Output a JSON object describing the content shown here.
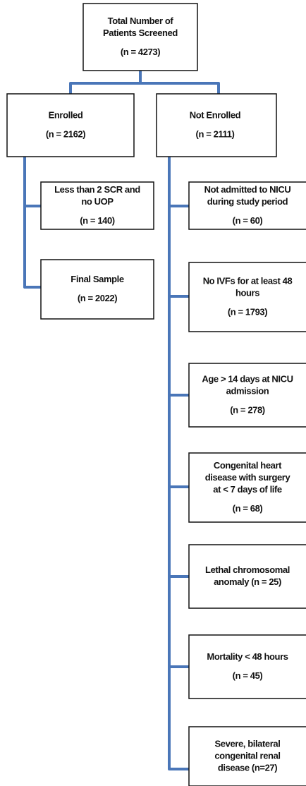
{
  "nodes": [
    {
      "lines": [
        "Total Number of",
        "Patients Screened"
      ],
      "count": "(n = 4273)"
    },
    {
      "lines": [
        "Enrolled"
      ],
      "count": "(n = 2162)"
    },
    {
      "lines": [
        "Not Enrolled"
      ],
      "count": "(n = 2111)"
    },
    {
      "lines": [
        "Less than 2 SCR and",
        "no UOP"
      ],
      "count": "(n = 140)"
    },
    {
      "lines": [
        "Final Sample"
      ],
      "count": "(n = 2022)"
    },
    {
      "lines": [
        "Not admitted to NICU",
        "during study period"
      ],
      "count": "(n = 60)"
    },
    {
      "lines": [
        "No IVFs for at least 48",
        "hours"
      ],
      "count": "(n = 1793)"
    },
    {
      "lines": [
        "Age > 14 days at NICU",
        "admission"
      ],
      "count": "(n = 278)"
    },
    {
      "lines": [
        "Congenital heart",
        "disease with surgery",
        "at < 7 days of life"
      ],
      "count": "(n = 68)"
    },
    {
      "lines": [
        "Lethal chromosomal",
        "anomaly (n = 25)"
      ]
    },
    {
      "lines": [
        "Mortality < 48 hours"
      ],
      "count": "(n = 45)"
    },
    {
      "lines": [
        "Severe, bilateral",
        "congenital renal",
        "disease (n=27)"
      ]
    }
  ]
}
